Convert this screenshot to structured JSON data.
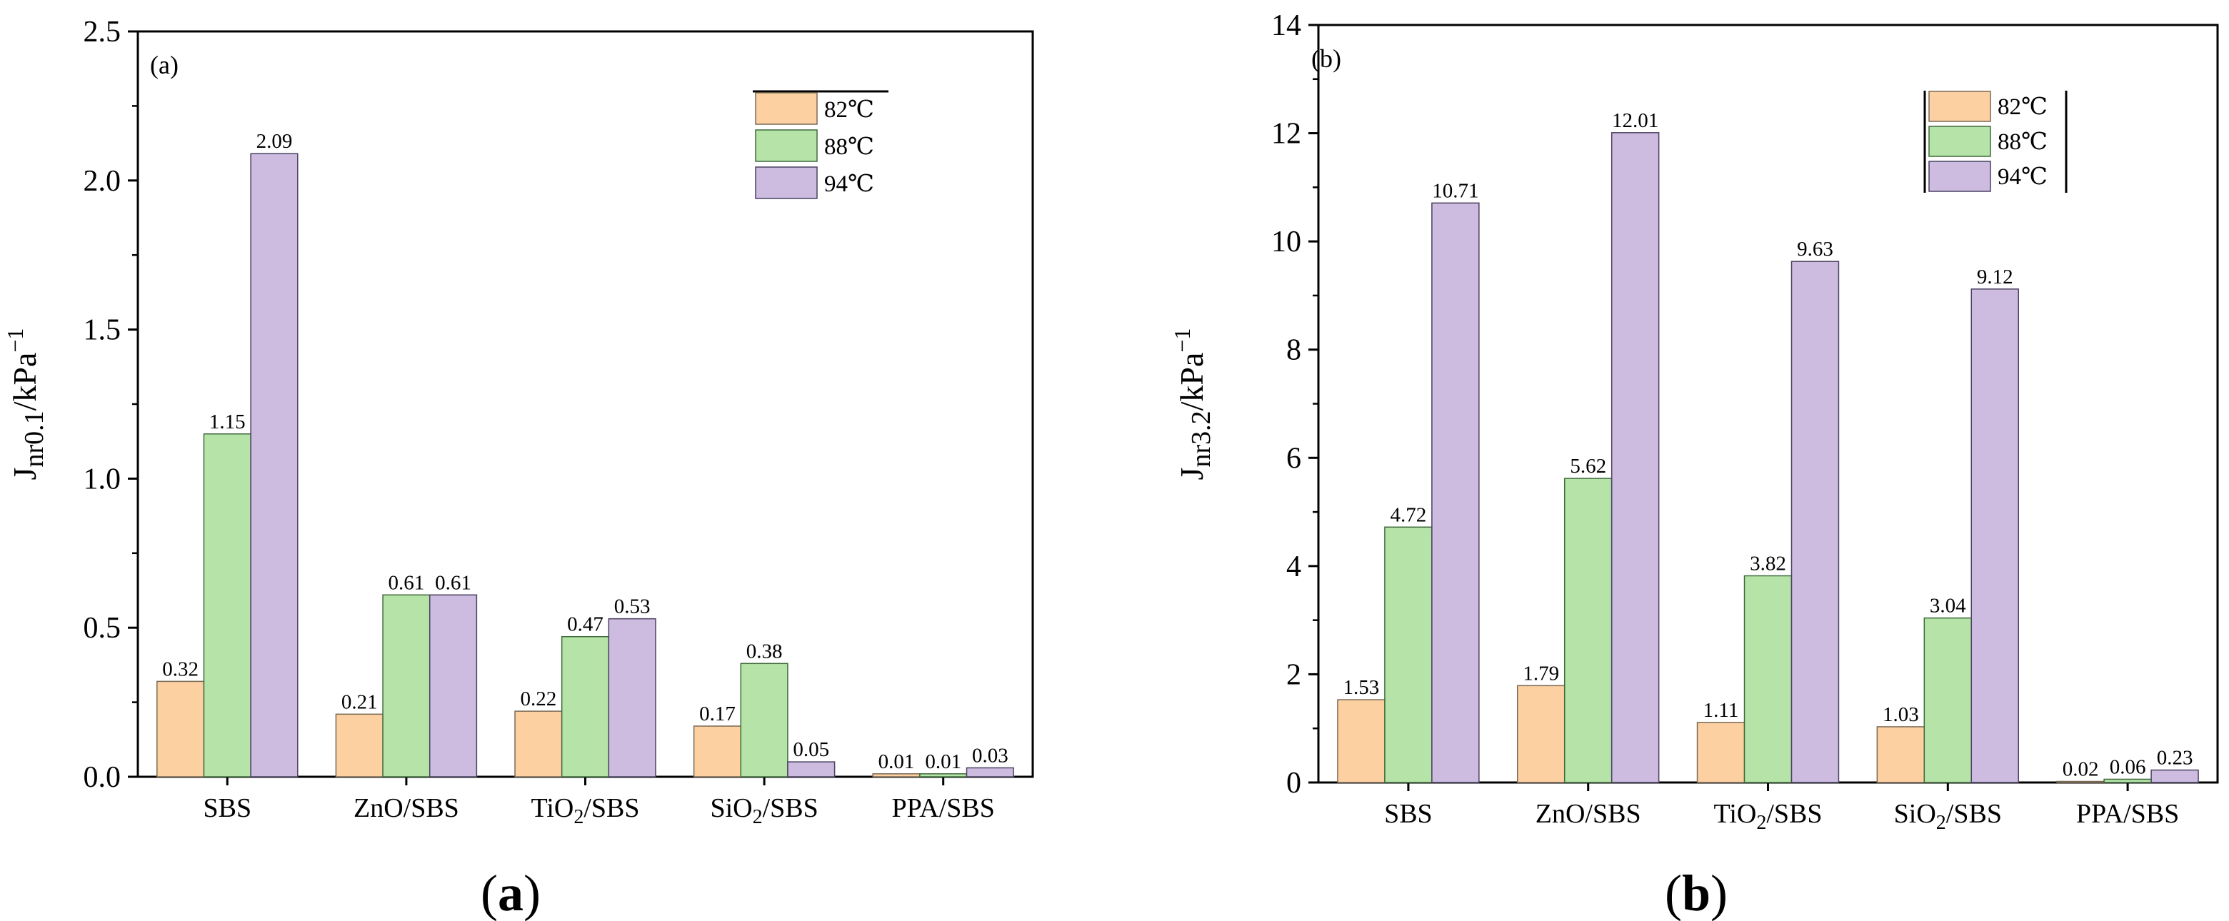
{
  "captions": [
    "(a)",
    "(b)"
  ],
  "colors": {
    "82": "#fdd0a2",
    "88": "#b6e3a8",
    "94": "#cdbbe0"
  },
  "chart_data": [
    {
      "type": "bar",
      "panel_label": "(a)",
      "ylabel": "Jnr0.1/kPa−1",
      "ylabel_parts": {
        "base": "J",
        "sub": "nr0.1",
        "unit": "/kPa",
        "sup": "−1"
      },
      "ylim": [
        0,
        2.5
      ],
      "yticks": [
        "0.0",
        "0.5",
        "1.0",
        "1.5",
        "2.0",
        "2.5"
      ],
      "categories": [
        "SBS",
        "ZnO/SBS",
        "TiO2/SBS",
        "SiO2/SBS",
        "PPA/SBS"
      ],
      "category_labels": [
        [
          "SBS",
          ""
        ],
        [
          "ZnO/SBS",
          ""
        ],
        [
          "TiO",
          "2",
          "/SBS"
        ],
        [
          "SiO",
          "2",
          "/SBS"
        ],
        [
          "PPA/SBS",
          ""
        ]
      ],
      "series": [
        {
          "name": "82℃",
          "values": [
            0.32,
            0.21,
            0.22,
            0.17,
            0.01
          ],
          "labels": [
            "0.32",
            "0.21",
            "0.22",
            "0.17",
            "0.01"
          ]
        },
        {
          "name": "88℃",
          "values": [
            1.15,
            0.61,
            0.47,
            0.38,
            0.01
          ],
          "labels": [
            "1.15",
            "0.61",
            "0.47",
            "0.38",
            "0.01"
          ]
        },
        {
          "name": "94℃",
          "values": [
            2.09,
            0.61,
            0.53,
            0.05,
            0.03
          ],
          "labels": [
            "2.09",
            "0.61",
            "0.53",
            "0.05",
            "0.03"
          ]
        }
      ],
      "legend": "top-right"
    },
    {
      "type": "bar",
      "panel_label": "(b)",
      "ylabel": "Jnr3.2/kPa−1",
      "ylabel_parts": {
        "base": "J",
        "sub": "nr3.2",
        "unit": "/kPa",
        "sup": "−1"
      },
      "ylim": [
        0,
        14
      ],
      "yticks": [
        "0",
        "2",
        "4",
        "6",
        "8",
        "10",
        "12",
        "14"
      ],
      "categories": [
        "SBS",
        "ZnO/SBS",
        "TiO2/SBS",
        "SiO2/SBS",
        "PPA/SBS"
      ],
      "category_labels": [
        [
          "SBS",
          ""
        ],
        [
          "ZnO/SBS",
          ""
        ],
        [
          "TiO",
          "2",
          "/SBS"
        ],
        [
          "SiO",
          "2",
          "/SBS"
        ],
        [
          "PPA/SBS",
          ""
        ]
      ],
      "series": [
        {
          "name": "82℃",
          "values": [
            1.53,
            1.79,
            1.11,
            1.03,
            0.02
          ],
          "labels": [
            "1.53",
            "1.79",
            "1.11",
            "1.03",
            "0.02"
          ]
        },
        {
          "name": "88℃",
          "values": [
            4.72,
            5.62,
            3.82,
            3.04,
            0.06
          ],
          "labels": [
            "4.72",
            "5.62",
            "3.82",
            "3.04",
            "0.06"
          ]
        },
        {
          "name": "94℃",
          "values": [
            10.71,
            12.01,
            9.63,
            9.12,
            0.23
          ],
          "labels": [
            "10.71",
            "12.01",
            "9.63",
            "9.12",
            "0.23"
          ]
        }
      ],
      "legend": "top-right"
    }
  ]
}
